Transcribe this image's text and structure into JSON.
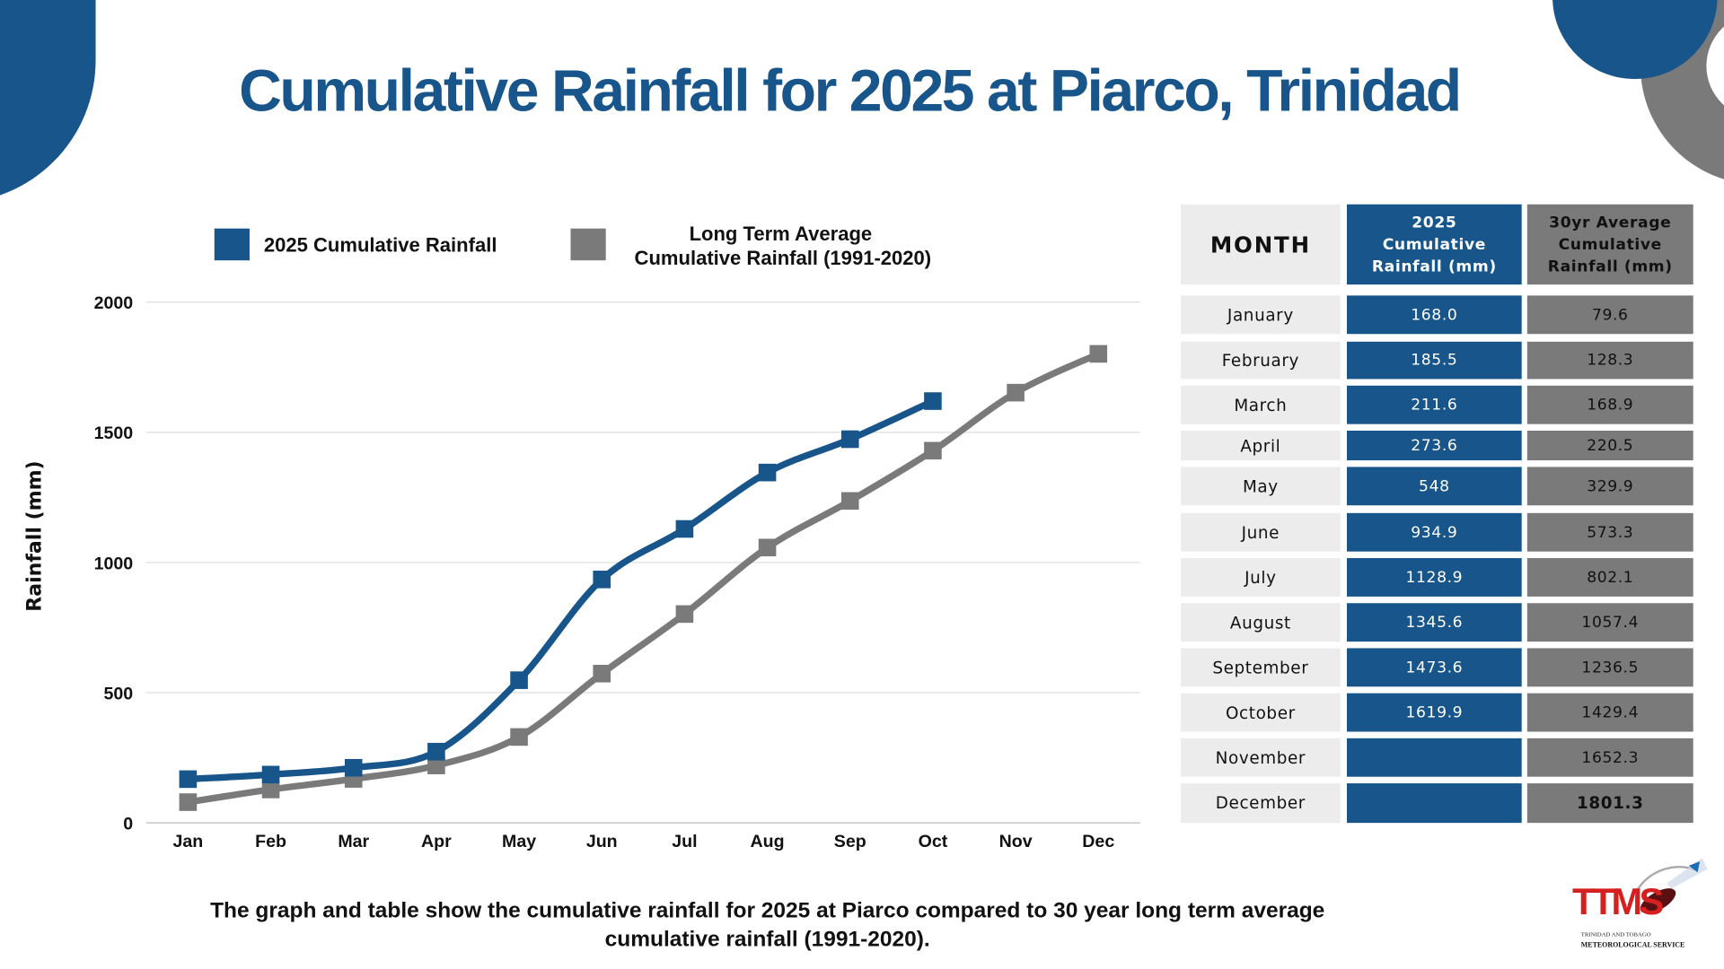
{
  "title": "Cumulative Rainfall for 2025 at Piarco, Trinidad",
  "footer": {
    "line1": "The graph and table show the cumulative rainfall for 2025 at Piarco compared to 30 year long term average",
    "line2": "cumulative rainfall (1991-2020)."
  },
  "logo": {
    "text": "TTMS",
    "sub1": "TRINIDAD AND TOBAGO",
    "sub2": "METEOROLOGICAL SERVICE"
  },
  "colors": {
    "primary": "#17558a",
    "secondary": "#7a7a7a",
    "month_cell": "#ececec"
  },
  "chart_data": {
    "type": "line",
    "title": "",
    "xlabel": "",
    "ylabel": "Rainfall  (mm)",
    "ylim": [
      0,
      2000
    ],
    "yticks": [
      "0",
      "500",
      "1000",
      "1500",
      "2000"
    ],
    "grid": true,
    "legend_position": "top",
    "categories": [
      "Jan",
      "Feb",
      "Mar",
      "Apr",
      "May",
      "Jun",
      "Jul",
      "Aug",
      "Sep",
      "Oct",
      "Nov",
      "Dec"
    ],
    "series": [
      {
        "name": "2025 Cumulative Rainfall",
        "color": "#17558a",
        "values": [
          168.0,
          185.5,
          211.6,
          273.6,
          548,
          934.9,
          1128.9,
          1345.6,
          1473.6,
          1619.9,
          null,
          null
        ]
      },
      {
        "name": "Long Term Average\nCumulative Rainfall  (1991-2020)",
        "legend_line1": "Long Term Average",
        "legend_line2": "Cumulative Rainfall  (1991-2020)",
        "color": "#7a7a7a",
        "values": [
          79.6,
          128.3,
          168.9,
          220.5,
          329.9,
          573.3,
          802.1,
          1057.4,
          1236.5,
          1429.4,
          1652.3,
          1801.3
        ]
      }
    ]
  },
  "table": {
    "headers": [
      "MONTH",
      "2025 Cumulative Rainfall (mm)",
      "30yr Average Cumulative Rainfall (mm)"
    ],
    "rows": [
      [
        "January",
        "168.0",
        "79.6"
      ],
      [
        "February",
        "185.5",
        "128.3"
      ],
      [
        "March",
        "211.6",
        "168.9"
      ],
      [
        "April",
        "273.6",
        "220.5"
      ],
      [
        "May",
        "548",
        "329.9"
      ],
      [
        "June",
        "934.9",
        "573.3"
      ],
      [
        "July",
        "1128.9",
        "802.1"
      ],
      [
        "August",
        "1345.6",
        "1057.4"
      ],
      [
        "September",
        "1473.6",
        "1236.5"
      ],
      [
        "October",
        "1619.9",
        "1429.4"
      ],
      [
        "November",
        "",
        "1652.3"
      ],
      [
        "December",
        "",
        "1801.3"
      ]
    ]
  }
}
